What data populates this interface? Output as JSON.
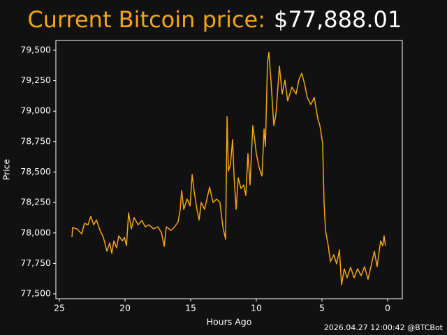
{
  "chart_data": {
    "type": "line",
    "title": "Current Bitcoin price:",
    "subtitle": "$77,888.01",
    "footer": "2026.04.27 12:00:42 @BTCBot",
    "x_label": "Hours Ago",
    "y_label": "Price",
    "xlim": [
      25.27,
      -1.12
    ],
    "xticks": [
      25,
      20,
      15,
      10,
      5,
      0
    ],
    "ylim": [
      77460,
      79580
    ],
    "yticks": [
      {
        "value": 77500,
        "label": "77,500"
      },
      {
        "value": 77750,
        "label": "77,750"
      },
      {
        "value": 78000,
        "label": "78,000"
      },
      {
        "value": 78250,
        "label": "78,250"
      },
      {
        "value": 78500,
        "label": "78,500"
      },
      {
        "value": 78750,
        "label": "78,750"
      },
      {
        "value": 79000,
        "label": "79,000"
      },
      {
        "value": 79250,
        "label": "79,250"
      },
      {
        "value": 79500,
        "label": "79,500"
      }
    ],
    "color": "#f5a511",
    "x": [
      24.04,
      24.0,
      23.67,
      23.3,
      23.09,
      22.82,
      22.61,
      22.39,
      22.18,
      21.91,
      21.65,
      21.38,
      21.17,
      21.01,
      20.85,
      20.64,
      20.48,
      20.21,
      20.05,
      19.89,
      19.73,
      19.52,
      19.31,
      19.0,
      18.72,
      18.46,
      18.19,
      17.82,
      17.5,
      17.23,
      17.02,
      16.86,
      16.49,
      16.22,
      15.96,
      15.8,
      15.69,
      15.53,
      15.27,
      15.05,
      14.89,
      14.73,
      14.52,
      14.36,
      14.2,
      13.94,
      13.56,
      13.3,
      13.03,
      12.77,
      12.55,
      12.34,
      12.23,
      12.13,
      11.97,
      11.81,
      11.7,
      11.54,
      11.38,
      11.17,
      10.96,
      10.8,
      10.64,
      10.48,
      10.27,
      10.16,
      10.0,
      9.79,
      9.57,
      9.41,
      9.31,
      9.15,
      9.04,
      8.88,
      8.67,
      8.51,
      8.24,
      8.03,
      7.82,
      7.61,
      7.29,
      6.97,
      6.76,
      6.54,
      6.33,
      6.12,
      5.85,
      5.59,
      5.32,
      5.16,
      4.95,
      4.84,
      4.73,
      4.52,
      4.36,
      4.1,
      3.88,
      3.67,
      3.51,
      3.3,
      3.09,
      2.82,
      2.55,
      2.29,
      2.02,
      1.76,
      1.49,
      1.22,
      1.01,
      0.8,
      0.53,
      0.37,
      0.27,
      0.16
    ],
    "values": [
      77964,
      78044,
      78033,
      77993,
      78079,
      78067,
      78136,
      78067,
      78107,
      78021,
      77964,
      77850,
      77918,
      77832,
      77935,
      77878,
      77976,
      77935,
      77964,
      77895,
      78165,
      78033,
      78125,
      78067,
      78102,
      78050,
      78067,
      78033,
      78050,
      78004,
      77890,
      78050,
      78021,
      78050,
      78090,
      78193,
      78348,
      78193,
      78279,
      78222,
      78480,
      78337,
      78193,
      78107,
      78250,
      78193,
      78377,
      78250,
      78279,
      78250,
      78050,
      77947,
      78956,
      78509,
      78566,
      78767,
      78480,
      78193,
      78452,
      78365,
      78394,
      78308,
      78652,
      78394,
      78881,
      78796,
      78652,
      78537,
      78468,
      78853,
      78710,
      79397,
      79483,
      79236,
      78881,
      78968,
      79370,
      79140,
      79255,
      79083,
      79197,
      79140,
      79255,
      79311,
      79226,
      79112,
      79054,
      79112,
      78938,
      78881,
      78738,
      78251,
      78021,
      77895,
      77764,
      77821,
      77746,
      77861,
      77574,
      77706,
      77632,
      77718,
      77632,
      77706,
      77649,
      77723,
      77620,
      77746,
      77850,
      77723,
      77935,
      77895,
      77976,
      77895
    ]
  }
}
